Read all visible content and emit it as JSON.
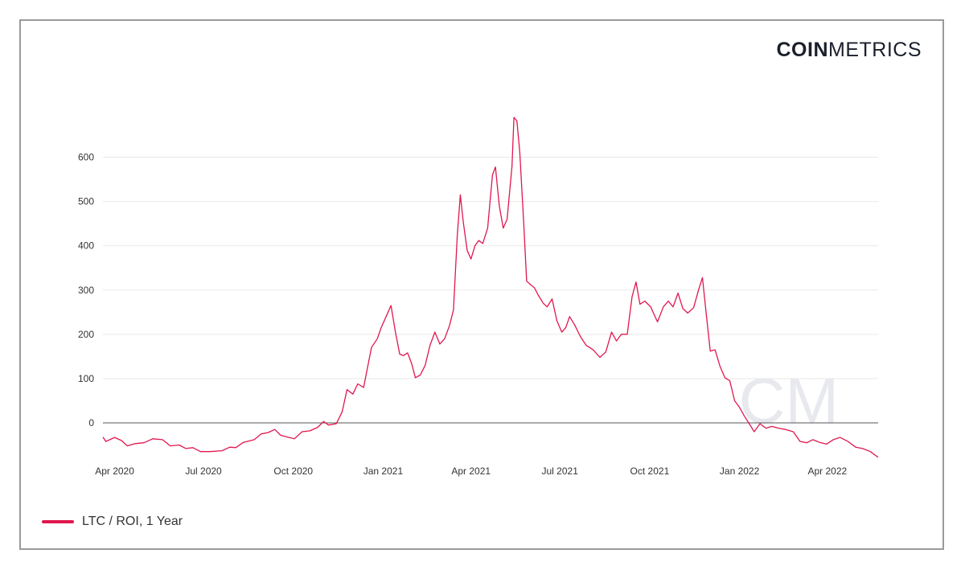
{
  "brand": {
    "logo_bold": "COIN",
    "logo_light": "METRICS",
    "watermark": "CM"
  },
  "colors": {
    "series": "#e0174e",
    "grid": "#e9e9e9",
    "zero_line": "#555555",
    "border": "#9a9a9a",
    "text": "#333333"
  },
  "chart_data": {
    "type": "line",
    "title": "",
    "xlabel": "",
    "ylabel": "",
    "xlim": [
      "2020-03-20",
      "2022-05-23"
    ],
    "ylim": [
      -80,
      690
    ],
    "y_ticks": [
      0,
      100,
      200,
      300,
      400,
      500,
      600
    ],
    "y_tick_labels": [
      "0",
      "100",
      "200",
      "300",
      "400",
      "500",
      "600"
    ],
    "x_ticks": [
      "2020-04-01",
      "2020-07-01",
      "2020-10-01",
      "2021-01-01",
      "2021-04-01",
      "2021-07-01",
      "2021-10-01",
      "2022-01-01",
      "2022-04-01"
    ],
    "x_tick_labels": [
      "Apr 2020",
      "Jul 2020",
      "Oct 2020",
      "Jan 2021",
      "Apr 2021",
      "Jul 2021",
      "Oct 2021",
      "Jan 2022",
      "Apr 2022"
    ],
    "grid": "horizontal",
    "legend_position": "bottom-left",
    "series": [
      {
        "name": "LTC / ROI, 1 Year",
        "points": [
          [
            "2020-03-20",
            -32
          ],
          [
            "2020-03-23",
            -42
          ],
          [
            "2020-04-01",
            -33
          ],
          [
            "2020-04-08",
            -40
          ],
          [
            "2020-04-14",
            -52
          ],
          [
            "2020-04-22",
            -47
          ],
          [
            "2020-05-01",
            -45
          ],
          [
            "2020-05-10",
            -36
          ],
          [
            "2020-05-20",
            -38
          ],
          [
            "2020-05-28",
            -52
          ],
          [
            "2020-06-06",
            -50
          ],
          [
            "2020-06-13",
            -58
          ],
          [
            "2020-06-20",
            -56
          ],
          [
            "2020-06-28",
            -65
          ],
          [
            "2020-07-08",
            -65
          ],
          [
            "2020-07-20",
            -63
          ],
          [
            "2020-07-28",
            -55
          ],
          [
            "2020-08-03",
            -56
          ],
          [
            "2020-08-11",
            -44
          ],
          [
            "2020-08-22",
            -38
          ],
          [
            "2020-08-29",
            -25
          ],
          [
            "2020-09-05",
            -22
          ],
          [
            "2020-09-12",
            -15
          ],
          [
            "2020-09-18",
            -28
          ],
          [
            "2020-09-25",
            -32
          ],
          [
            "2020-10-02",
            -36
          ],
          [
            "2020-10-10",
            -20
          ],
          [
            "2020-10-18",
            -18
          ],
          [
            "2020-10-26",
            -10
          ],
          [
            "2020-11-01",
            3
          ],
          [
            "2020-11-06",
            -5
          ],
          [
            "2020-11-14",
            -2
          ],
          [
            "2020-11-20",
            25
          ],
          [
            "2020-11-25",
            75
          ],
          [
            "2020-12-01",
            65
          ],
          [
            "2020-12-06",
            88
          ],
          [
            "2020-12-12",
            80
          ],
          [
            "2020-12-20",
            170
          ],
          [
            "2020-12-26",
            190
          ],
          [
            "2020-12-30",
            215
          ],
          [
            "2021-01-04",
            240
          ],
          [
            "2021-01-09",
            265
          ],
          [
            "2021-01-14",
            200
          ],
          [
            "2021-01-18",
            155
          ],
          [
            "2021-01-22",
            152
          ],
          [
            "2021-01-26",
            158
          ],
          [
            "2021-01-30",
            135
          ],
          [
            "2021-02-03",
            102
          ],
          [
            "2021-02-08",
            108
          ],
          [
            "2021-02-13",
            130
          ],
          [
            "2021-02-18",
            175
          ],
          [
            "2021-02-23",
            205
          ],
          [
            "2021-02-28",
            178
          ],
          [
            "2021-03-05",
            190
          ],
          [
            "2021-03-10",
            220
          ],
          [
            "2021-03-14",
            255
          ],
          [
            "2021-03-18",
            425
          ],
          [
            "2021-03-21",
            515
          ],
          [
            "2021-03-24",
            455
          ],
          [
            "2021-03-28",
            390
          ],
          [
            "2021-04-01",
            370
          ],
          [
            "2021-04-05",
            400
          ],
          [
            "2021-04-09",
            412
          ],
          [
            "2021-04-13",
            405
          ],
          [
            "2021-04-18",
            440
          ],
          [
            "2021-04-23",
            560
          ],
          [
            "2021-04-26",
            578
          ],
          [
            "2021-04-30",
            490
          ],
          [
            "2021-05-04",
            440
          ],
          [
            "2021-05-08",
            460
          ],
          [
            "2021-05-13",
            580
          ],
          [
            "2021-05-15",
            690
          ],
          [
            "2021-05-18",
            682
          ],
          [
            "2021-05-21",
            610
          ],
          [
            "2021-05-25",
            450
          ],
          [
            "2021-05-28",
            320
          ],
          [
            "2021-06-01",
            312
          ],
          [
            "2021-06-05",
            305
          ],
          [
            "2021-06-09",
            288
          ],
          [
            "2021-06-14",
            270
          ],
          [
            "2021-06-18",
            262
          ],
          [
            "2021-06-23",
            280
          ],
          [
            "2021-06-28",
            230
          ],
          [
            "2021-07-03",
            205
          ],
          [
            "2021-07-07",
            215
          ],
          [
            "2021-07-11",
            240
          ],
          [
            "2021-07-16",
            222
          ],
          [
            "2021-07-22",
            195
          ],
          [
            "2021-07-28",
            175
          ],
          [
            "2021-08-04",
            165
          ],
          [
            "2021-08-11",
            148
          ],
          [
            "2021-08-17",
            160
          ],
          [
            "2021-08-23",
            205
          ],
          [
            "2021-08-28",
            185
          ],
          [
            "2021-09-02",
            200
          ],
          [
            "2021-09-08",
            200
          ],
          [
            "2021-09-13",
            285
          ],
          [
            "2021-09-17",
            318
          ],
          [
            "2021-09-21",
            268
          ],
          [
            "2021-09-26",
            275
          ],
          [
            "2021-10-02",
            262
          ],
          [
            "2021-10-09",
            228
          ],
          [
            "2021-10-15",
            262
          ],
          [
            "2021-10-20",
            275
          ],
          [
            "2021-10-25",
            262
          ],
          [
            "2021-10-30",
            293
          ],
          [
            "2021-11-04",
            258
          ],
          [
            "2021-11-09",
            248
          ],
          [
            "2021-11-15",
            260
          ],
          [
            "2021-11-20",
            300
          ],
          [
            "2021-11-24",
            328
          ],
          [
            "2021-11-28",
            245
          ],
          [
            "2021-12-02",
            162
          ],
          [
            "2021-12-07",
            165
          ],
          [
            "2021-12-12",
            128
          ],
          [
            "2021-12-17",
            102
          ],
          [
            "2021-12-22",
            95
          ],
          [
            "2021-12-27",
            50
          ],
          [
            "2022-01-01",
            35
          ],
          [
            "2022-01-06",
            15
          ],
          [
            "2022-01-11",
            -2
          ],
          [
            "2022-01-16",
            -20
          ],
          [
            "2022-01-22",
            -2
          ],
          [
            "2022-01-28",
            -12
          ],
          [
            "2022-02-03",
            -8
          ],
          [
            "2022-02-10",
            -12
          ],
          [
            "2022-02-17",
            -15
          ],
          [
            "2022-02-25",
            -20
          ],
          [
            "2022-03-04",
            -42
          ],
          [
            "2022-03-11",
            -45
          ],
          [
            "2022-03-17",
            -38
          ],
          [
            "2022-03-24",
            -44
          ],
          [
            "2022-03-31",
            -48
          ],
          [
            "2022-04-07",
            -38
          ],
          [
            "2022-04-14",
            -33
          ],
          [
            "2022-04-22",
            -42
          ],
          [
            "2022-04-30",
            -55
          ],
          [
            "2022-05-07",
            -58
          ],
          [
            "2022-05-15",
            -65
          ],
          [
            "2022-05-23",
            -78
          ]
        ]
      }
    ]
  }
}
